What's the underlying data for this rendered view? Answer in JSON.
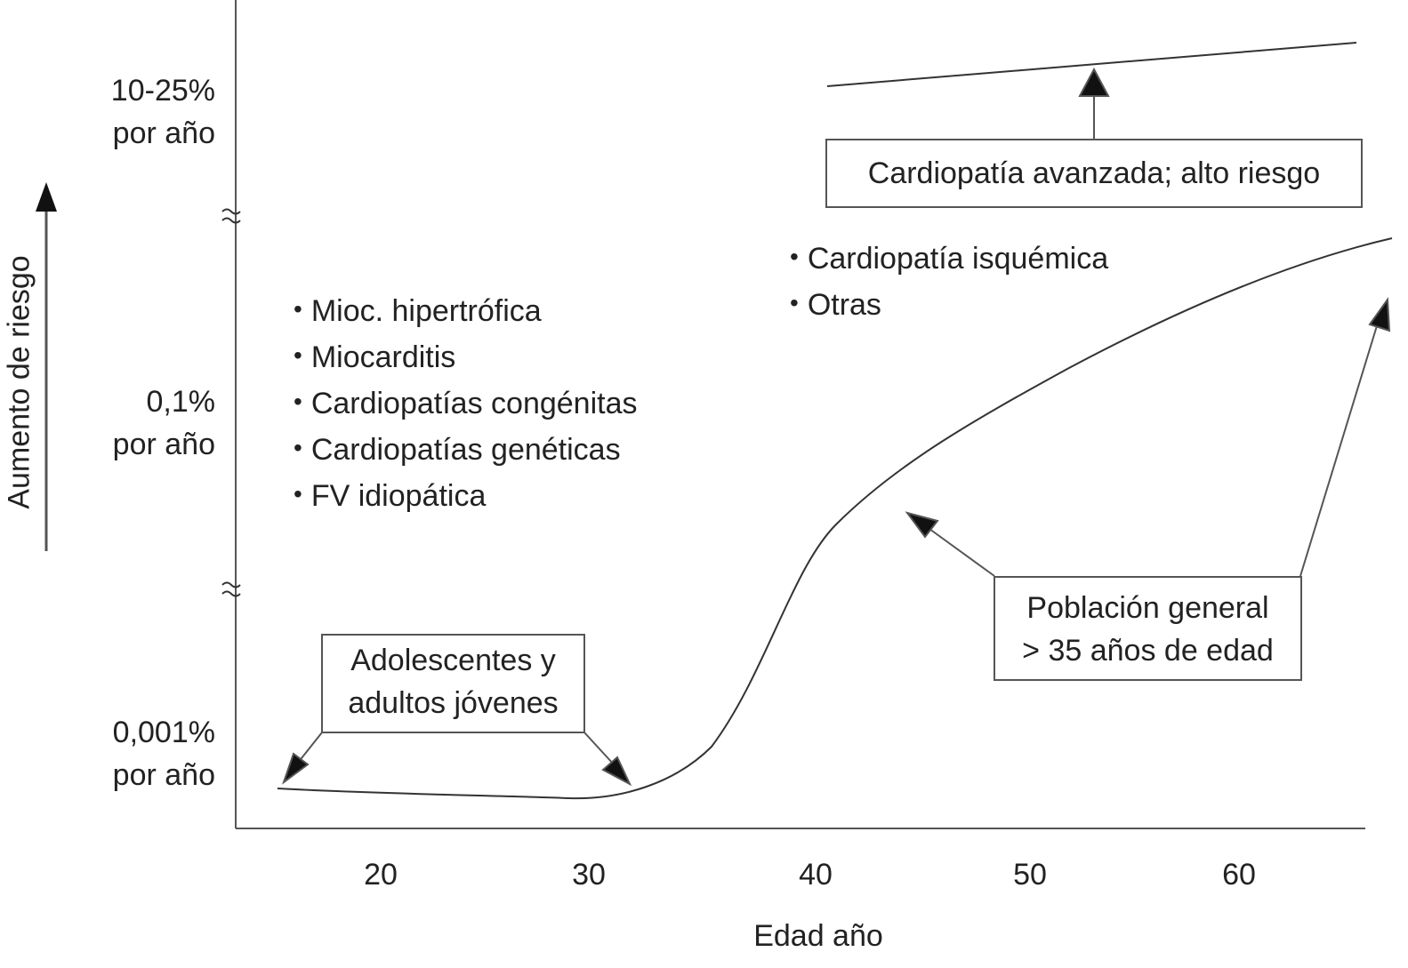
{
  "chart_data": {
    "type": "line",
    "xlabel": "Edad año",
    "ylabel": "Aumento de riesgo",
    "x_ticks": [
      20,
      30,
      40,
      50,
      60
    ],
    "xlim": [
      15,
      66
    ],
    "y_tick_labels": [
      {
        "value": "0,001%",
        "unit": "por año"
      },
      {
        "value": "0,1%",
        "unit": "por año"
      },
      {
        "value": "10-25%",
        "unit": "por año"
      }
    ],
    "y_scale": "broken (axis breaks)",
    "series": [
      {
        "points": [
          {
            "x": 17,
            "level": "0,001%"
          },
          {
            "x": 25,
            "level": "0,001%"
          },
          {
            "x": 30,
            "level": "0,001%"
          },
          {
            "x": 33,
            "level": "0,001%"
          },
          {
            "x": 36,
            "level": "0,001%"
          },
          {
            "x": 38,
            "level": "0,1%"
          },
          {
            "x": 41,
            "level": "0,1%"
          },
          {
            "x": 50,
            "level": "0,1%"
          },
          {
            "x": 66,
            "level": "0,1%"
          }
        ]
      },
      {
        "points": [
          {
            "x": 40,
            "level": "10-25%"
          },
          {
            "x": 65,
            "level": "10-25%"
          }
        ]
      }
    ],
    "annotations": {
      "young_box": [
        "Adolescentes y",
        "adultos jóvenes"
      ],
      "general_box": [
        "Población general",
        "> 35 años de edad"
      ],
      "advanced_box": [
        "Cardiopatía avanzada; alto riesgo"
      ],
      "young_causes": [
        "Mioc. hipertrófica",
        "Miocarditis",
        "Cardiopatías congénitas",
        "Cardiopatías genéticas",
        "FV idiopática"
      ],
      "adult_causes": [
        "Cardiopatía isquémica",
        "Otras"
      ]
    },
    "axis_break_symbol": "≈",
    "grid": false,
    "legend": "none"
  }
}
